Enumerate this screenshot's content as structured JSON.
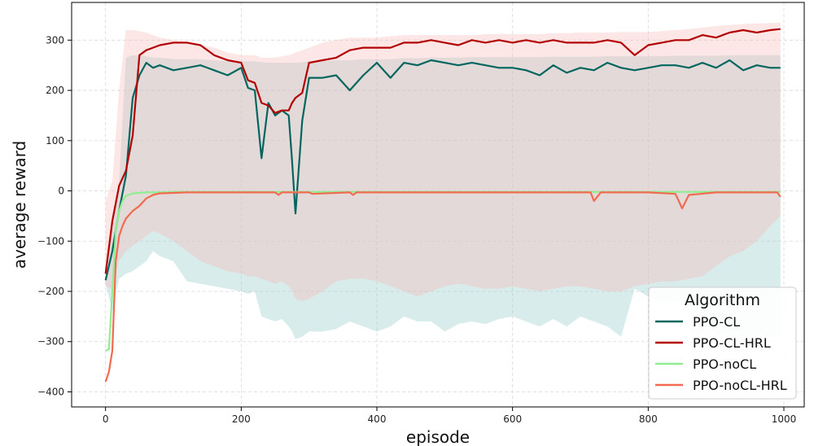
{
  "chart_data": {
    "type": "line",
    "title": "",
    "xlabel": "episode",
    "ylabel": "average reward",
    "xlim": [
      -50,
      1030
    ],
    "ylim": [
      -430,
      375
    ],
    "xticks": [
      0,
      200,
      400,
      600,
      800,
      1000
    ],
    "yticks": [
      -400,
      -300,
      -200,
      -100,
      0,
      100,
      200,
      300
    ],
    "grid": true,
    "legend": {
      "title": "Algorithm",
      "position": "bottom-right"
    },
    "series": [
      {
        "name": "PPO-CL",
        "color": "#00665e",
        "band_color": "#93c9c9",
        "x": [
          0,
          10,
          20,
          30,
          40,
          50,
          60,
          70,
          80,
          100,
          120,
          140,
          160,
          180,
          200,
          210,
          220,
          230,
          240,
          250,
          260,
          270,
          275,
          280,
          290,
          300,
          320,
          340,
          360,
          380,
          400,
          420,
          440,
          460,
          480,
          500,
          520,
          540,
          560,
          580,
          600,
          620,
          640,
          660,
          680,
          700,
          720,
          740,
          760,
          780,
          800,
          820,
          840,
          860,
          880,
          900,
          920,
          940,
          960,
          980,
          995
        ],
        "values": [
          -178,
          -120,
          -40,
          30,
          185,
          230,
          255,
          245,
          250,
          240,
          245,
          250,
          240,
          230,
          245,
          205,
          200,
          65,
          175,
          150,
          160,
          150,
          60,
          -45,
          140,
          225,
          225,
          230,
          200,
          230,
          255,
          225,
          255,
          250,
          260,
          255,
          250,
          255,
          250,
          245,
          245,
          240,
          230,
          250,
          235,
          245,
          240,
          255,
          245,
          240,
          245,
          250,
          250,
          245,
          255,
          245,
          260,
          240,
          250,
          245,
          245
        ],
        "upper": [
          -170,
          -60,
          20,
          265,
          270,
          270,
          268,
          265,
          265,
          262,
          262,
          262,
          260,
          258,
          258,
          258,
          258,
          256,
          255,
          255,
          255,
          255,
          255,
          255,
          256,
          258,
          258,
          260,
          260,
          262,
          262,
          262,
          264,
          264,
          265,
          265,
          265,
          266,
          266,
          266,
          266,
          266,
          266,
          267,
          267,
          267,
          267,
          268,
          268,
          268,
          268,
          268,
          269,
          269,
          269,
          269,
          270,
          270,
          270,
          270,
          270
        ],
        "lower": [
          -185,
          -240,
          -175,
          -165,
          -160,
          -150,
          -140,
          -120,
          -130,
          -140,
          -180,
          -185,
          -190,
          -195,
          -200,
          -205,
          -200,
          -250,
          -255,
          -260,
          -255,
          -270,
          -280,
          -295,
          -290,
          -280,
          -280,
          -275,
          -260,
          -270,
          -280,
          -270,
          -250,
          -260,
          -260,
          -280,
          -265,
          -260,
          -265,
          -255,
          -250,
          -260,
          -270,
          -255,
          -270,
          -250,
          -260,
          -270,
          -290,
          -195,
          -210,
          -225,
          -220,
          -230,
          -260,
          -285,
          -290,
          -290,
          -280,
          -290,
          -290
        ]
      },
      {
        "name": "PPO-CL-HRL",
        "color": "#b30000",
        "band_color": "#f7b8b8",
        "x": [
          0,
          10,
          20,
          30,
          40,
          50,
          60,
          70,
          80,
          100,
          120,
          140,
          160,
          180,
          200,
          210,
          220,
          230,
          240,
          250,
          260,
          270,
          275,
          280,
          290,
          300,
          320,
          340,
          360,
          380,
          400,
          420,
          440,
          460,
          480,
          500,
          520,
          540,
          560,
          580,
          600,
          620,
          640,
          660,
          680,
          700,
          720,
          740,
          760,
          780,
          800,
          820,
          840,
          860,
          880,
          900,
          920,
          940,
          960,
          980,
          995
        ],
        "values": [
          -165,
          -60,
          10,
          40,
          110,
          270,
          280,
          285,
          290,
          295,
          295,
          290,
          270,
          260,
          255,
          220,
          215,
          175,
          170,
          155,
          160,
          160,
          175,
          185,
          195,
          255,
          260,
          265,
          280,
          285,
          285,
          285,
          295,
          295,
          300,
          295,
          290,
          300,
          295,
          300,
          295,
          300,
          295,
          300,
          295,
          295,
          295,
          300,
          295,
          270,
          290,
          295,
          300,
          300,
          310,
          305,
          315,
          320,
          315,
          320,
          322
        ],
        "upper": [
          -20,
          20,
          200,
          320,
          320,
          318,
          315,
          310,
          305,
          300,
          295,
          290,
          285,
          275,
          270,
          270,
          270,
          265,
          265,
          265,
          268,
          270,
          272,
          275,
          280,
          285,
          295,
          300,
          305,
          305,
          305,
          308,
          310,
          310,
          310,
          310,
          310,
          310,
          312,
          312,
          312,
          312,
          312,
          314,
          314,
          315,
          315,
          315,
          316,
          316,
          316,
          318,
          320,
          322,
          325,
          328,
          330,
          332,
          333,
          334,
          335
        ],
        "lower": [
          -190,
          -195,
          -140,
          -120,
          -110,
          -100,
          -90,
          -80,
          -85,
          -100,
          -120,
          -140,
          -150,
          -160,
          -165,
          -170,
          -170,
          -175,
          -180,
          -185,
          -180,
          -190,
          -200,
          -215,
          -220,
          -215,
          -200,
          -180,
          -175,
          -175,
          -180,
          -190,
          -200,
          -210,
          -200,
          -190,
          -185,
          -190,
          -195,
          -195,
          -190,
          -195,
          -200,
          -195,
          -190,
          -190,
          -195,
          -200,
          -200,
          -190,
          -185,
          -180,
          -180,
          -175,
          -170,
          -150,
          -130,
          -120,
          -100,
          -70,
          -50
        ]
      },
      {
        "name": "PPO-noCL",
        "color": "#90ee90",
        "x": [
          0,
          5,
          10,
          15,
          20,
          25,
          30,
          40,
          50,
          60,
          80,
          100,
          150,
          200,
          300,
          400,
          500,
          600,
          700,
          800,
          900,
          995
        ],
        "values": [
          -318,
          -315,
          -200,
          -80,
          -40,
          -20,
          -10,
          -5,
          -4,
          -3,
          -3,
          -2,
          -2,
          -2,
          -2,
          -2,
          -2,
          -2,
          -2,
          -2,
          -2,
          -2
        ]
      },
      {
        "name": "PPO-noCL-HRL",
        "color": "#f26a4f",
        "x": [
          0,
          5,
          10,
          15,
          20,
          25,
          30,
          40,
          50,
          60,
          70,
          80,
          100,
          120,
          140,
          160,
          200,
          250,
          255,
          260,
          300,
          305,
          360,
          365,
          370,
          400,
          500,
          600,
          700,
          715,
          720,
          730,
          800,
          840,
          845,
          850,
          860,
          900,
          990,
          995
        ],
        "values": [
          -380,
          -360,
          -318,
          -140,
          -90,
          -70,
          -55,
          -40,
          -30,
          -15,
          -8,
          -5,
          -4,
          -3,
          -3,
          -3,
          -3,
          -3,
          -8,
          -3,
          -3,
          -6,
          -3,
          -8,
          -3,
          -3,
          -3,
          -3,
          -3,
          -3,
          -20,
          -3,
          -3,
          -6,
          -20,
          -35,
          -8,
          -3,
          -3,
          -12
        ]
      }
    ]
  }
}
